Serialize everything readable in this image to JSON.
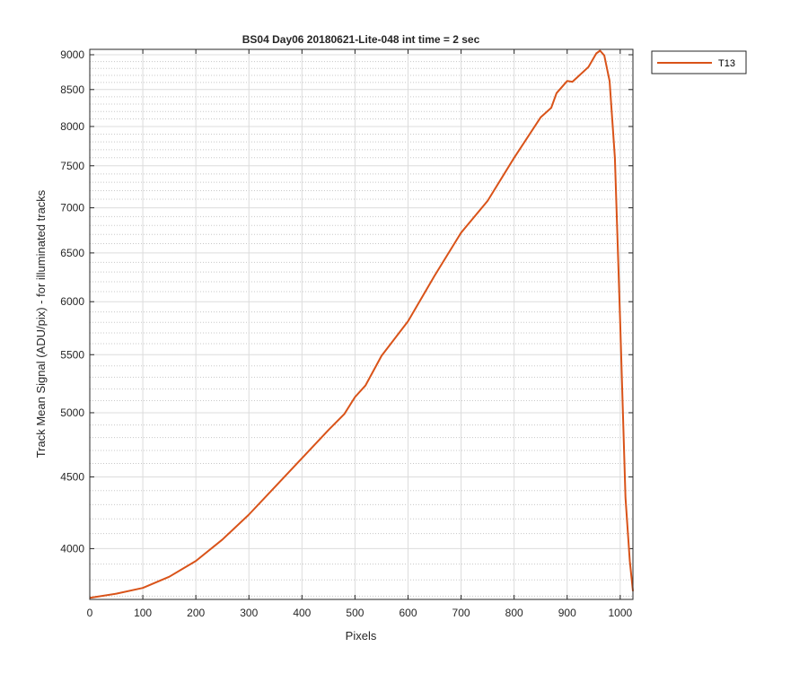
{
  "chart_data": {
    "type": "line",
    "title": "BS04 Day06 20180621-Lite-048 int time = 2 sec",
    "xlabel": "Pixels",
    "ylabel": "Track Mean Signal (ADU/pix) - for illuminated tracks",
    "xlim": [
      0,
      1024
    ],
    "ylim": [
      3680,
      9080
    ],
    "yscale": "log",
    "x_ticks": [
      0,
      100,
      200,
      300,
      400,
      500,
      600,
      700,
      800,
      900,
      1000
    ],
    "y_ticks": [
      4000,
      4500,
      5000,
      5500,
      6000,
      6500,
      7000,
      7500,
      8000,
      8500,
      9000
    ],
    "x_tick_labels": [
      "0",
      "100",
      "200",
      "300",
      "400",
      "500",
      "600",
      "700",
      "800",
      "900",
      "1000"
    ],
    "y_tick_labels": [
      "4000",
      "4500",
      "5000",
      "5500",
      "6000",
      "6500",
      "7000",
      "7500",
      "8000",
      "8500",
      "9000"
    ],
    "grid": true,
    "minor_grid": true,
    "legend_position": "outside-top-right",
    "series": [
      {
        "name": "T13",
        "color": "#D95319",
        "x": [
          0,
          50,
          100,
          150,
          200,
          250,
          300,
          350,
          400,
          450,
          480,
          500,
          520,
          550,
          600,
          650,
          700,
          750,
          800,
          850,
          870,
          880,
          900,
          910,
          920,
          940,
          955,
          962,
          970,
          980,
          990,
          1000,
          1010,
          1018,
          1024
        ],
        "y": [
          3690,
          3715,
          3750,
          3820,
          3920,
          4060,
          4230,
          4430,
          4640,
          4860,
          4990,
          5130,
          5230,
          5490,
          5810,
          6260,
          6720,
          7080,
          7600,
          8120,
          8250,
          8450,
          8620,
          8610,
          8680,
          8820,
          9020,
          9060,
          8990,
          8620,
          7600,
          5800,
          4350,
          3920,
          3730
        ]
      }
    ]
  }
}
